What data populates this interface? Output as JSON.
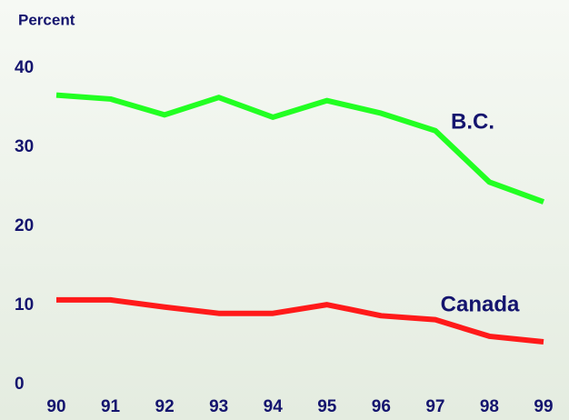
{
  "chart_data": {
    "type": "line",
    "y_label": "Percent",
    "categories": [
      "90",
      "91",
      "92",
      "93",
      "94",
      "95",
      "96",
      "97",
      "98",
      "99"
    ],
    "series": [
      {
        "name": "B.C.",
        "color": "#22ff22",
        "values": [
          36.6,
          36.1,
          34.1,
          36.3,
          33.8,
          35.9,
          34.3,
          32.1,
          25.6,
          23.1
        ]
      },
      {
        "name": "Canada",
        "color": "#ff1a1a",
        "values": [
          10.7,
          10.7,
          9.8,
          9.0,
          9.0,
          10.1,
          8.7,
          8.2,
          6.1,
          5.4
        ]
      }
    ],
    "ylim": [
      0,
      40
    ],
    "yticks": [
      0,
      10,
      20,
      30,
      40
    ],
    "grid": false
  }
}
